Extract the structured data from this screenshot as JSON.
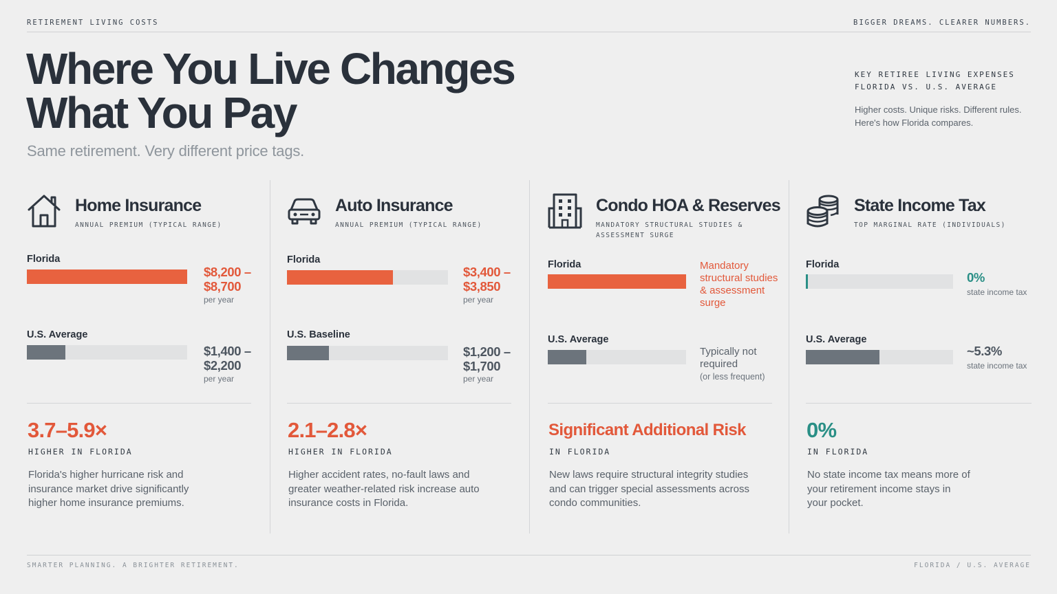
{
  "header": {
    "section_label": "RETIREMENT LIVING COSTS",
    "tagline": "BIGGER DREAMS. CLEARER NUMBERS."
  },
  "hero": {
    "title_line1": "Where You Live Changes",
    "title_line2": "What You Pay",
    "subtitle": "Same retirement. Very different price tags.",
    "kicker_line1": "KEY RETIREE LIVING EXPENSES",
    "kicker_line2": "FLORIDA VS. U.S. AVERAGE",
    "desc_line1": "Higher costs. Unique risks. Different rules.",
    "desc_line2": "Here's how Florida compares."
  },
  "colors": {
    "accent_orange": "#e8623f",
    "comparison_gray": "#6c747c",
    "positive_teal": "#2a8f86",
    "track": "#e1e2e3"
  },
  "chart_data": [
    {
      "type": "bar",
      "title": "Home Insurance",
      "subtitle": "ANNUAL PREMIUM (TYPICAL RANGE)",
      "icon": "house-icon",
      "categories": [
        "Florida",
        "U.S. Average"
      ],
      "values": [
        1.0,
        0.24
      ],
      "rows": [
        {
          "label": "Florida",
          "value_line1": "$8,200 –",
          "value_line2": "$8,700",
          "note": "per year",
          "fill": 1.0,
          "color": "orange"
        },
        {
          "label": "U.S. Average",
          "value_line1": "$1,400 –",
          "value_line2": "$2,200",
          "note": "per year",
          "fill": 0.24,
          "color": "gray"
        }
      ],
      "stat": "3.7–5.9×",
      "stat_label": "HIGHER IN FLORIDA",
      "body": "Florida's higher hurricane risk and insurance market drive significantly higher home insurance premiums."
    },
    {
      "type": "bar",
      "title": "Auto Insurance",
      "subtitle": "ANNUAL PREMIUM (TYPICAL RANGE)",
      "icon": "car-icon",
      "categories": [
        "Florida",
        "U.S. Baseline"
      ],
      "values": [
        0.66,
        0.26
      ],
      "rows": [
        {
          "label": "Florida",
          "value_line1": "$3,400 –",
          "value_line2": "$3,850",
          "note": "per year",
          "fill": 0.66,
          "color": "orange"
        },
        {
          "label": "U.S. Baseline",
          "value_line1": "$1,200 –",
          "value_line2": "$1,700",
          "note": "per year",
          "fill": 0.26,
          "color": "gray"
        }
      ],
      "stat": "2.1–2.8×",
      "stat_label": "HIGHER IN FLORIDA",
      "body": "Higher accident rates, no-fault laws and greater weather-related risk increase auto insurance costs in Florida."
    },
    {
      "type": "bar",
      "title": "Condo HOA & Reserves",
      "subtitle": "MANDATORY STRUCTURAL STUDIES & ASSESSMENT SURGE",
      "icon": "building-icon",
      "categories": [
        "Florida",
        "U.S. Average"
      ],
      "values": [
        1.0,
        0.28
      ],
      "rows": [
        {
          "label": "Florida",
          "value_text": "Mandatory structural studies & assessment surge",
          "fill": 1.0,
          "color": "orange"
        },
        {
          "label": "U.S. Average",
          "value_text": "Typically not required",
          "note": "(or less frequent)",
          "fill": 0.28,
          "color": "gray"
        }
      ],
      "stat": "Significant Additional Risk",
      "stat_label": "IN FLORIDA",
      "body": "New laws require structural integrity studies and can trigger special assessments across condo communities."
    },
    {
      "type": "bar",
      "title": "State Income Tax",
      "subtitle": "TOP MARGINAL RATE (INDIVIDUALS)",
      "icon": "coins-icon",
      "categories": [
        "Florida",
        "U.S. Average"
      ],
      "values": [
        0,
        5.3
      ],
      "rows": [
        {
          "label": "Florida",
          "value_line1": "0%",
          "note": "state income tax",
          "fill": 0.0,
          "color": "teal"
        },
        {
          "label": "U.S. Average",
          "value_line1": "~5.3%",
          "note": "state income tax",
          "fill": 0.5,
          "color": "gray"
        }
      ],
      "stat": "0%",
      "stat_label": "IN FLORIDA",
      "body": "No state income tax means more of your retirement income stays in your pocket."
    }
  ],
  "footer": {
    "left": "SMARTER PLANNING. A BRIGHTER RETIREMENT.",
    "right": "FLORIDA / U.S. AVERAGE"
  }
}
